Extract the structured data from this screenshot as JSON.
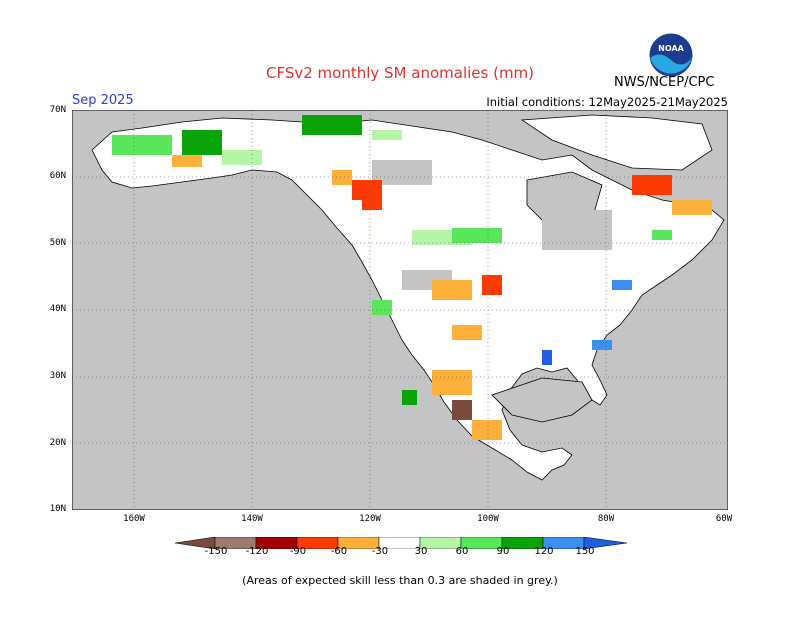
{
  "title": "CFSv2 monthly SM anomalies (mm)",
  "month": "Sep 2025",
  "initial_conditions": "Initial conditions: 12May2025-21May2025",
  "agency": "NWS/NCEP/CPC",
  "logo_text": "NOAA",
  "latitude_labels": [
    "70N",
    "60N",
    "50N",
    "40N",
    "30N",
    "20N",
    "10N"
  ],
  "longitude_labels": [
    "160W",
    "140W",
    "120W",
    "100W",
    "80W",
    "60W"
  ],
  "colorbar": {
    "ticks": [
      "-150",
      "-120",
      "-90",
      "-60",
      "-30",
      "30",
      "60",
      "90",
      "120",
      "150"
    ],
    "colors": [
      "#7a4a3c",
      "#9c7b6e",
      "#a30000",
      "#ff3a00",
      "#ffb03a",
      "#ffffff",
      "#b4f5a8",
      "#5ae65a",
      "#0aa30a",
      "#3a8ff0",
      "#1e5ee0"
    ]
  },
  "note": "(Areas of expected skill less than 0.3 are shaded in grey.)",
  "colors": {
    "land": "#ffffff",
    "ocean": "#c4c4c4",
    "grey": "#c4c4c4",
    "title": "#e0322a",
    "month": "#2a3fd0"
  }
}
